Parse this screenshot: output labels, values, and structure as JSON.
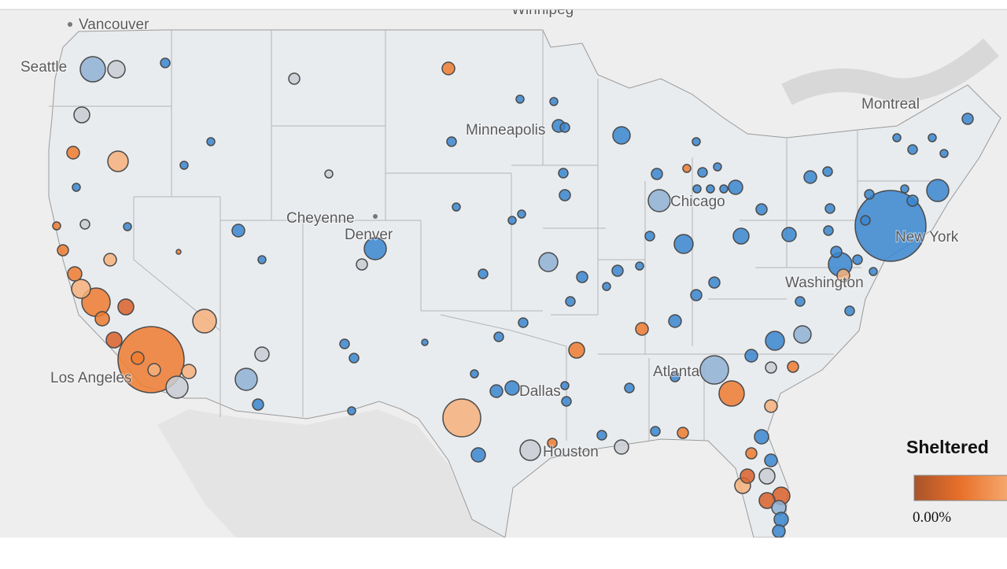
{
  "map": {
    "labels": [
      "Winnipeg",
      "Vancouver",
      "Seattle",
      "Montreal",
      "Minneapolis",
      "Cheyenne",
      "Denver",
      "Chicago",
      "New York",
      "Washington",
      "Los Angeles",
      "Atlanta",
      "Dallas",
      "Houston"
    ],
    "legend": {
      "title": "Sheltered",
      "label": "0.00%"
    }
  }
}
